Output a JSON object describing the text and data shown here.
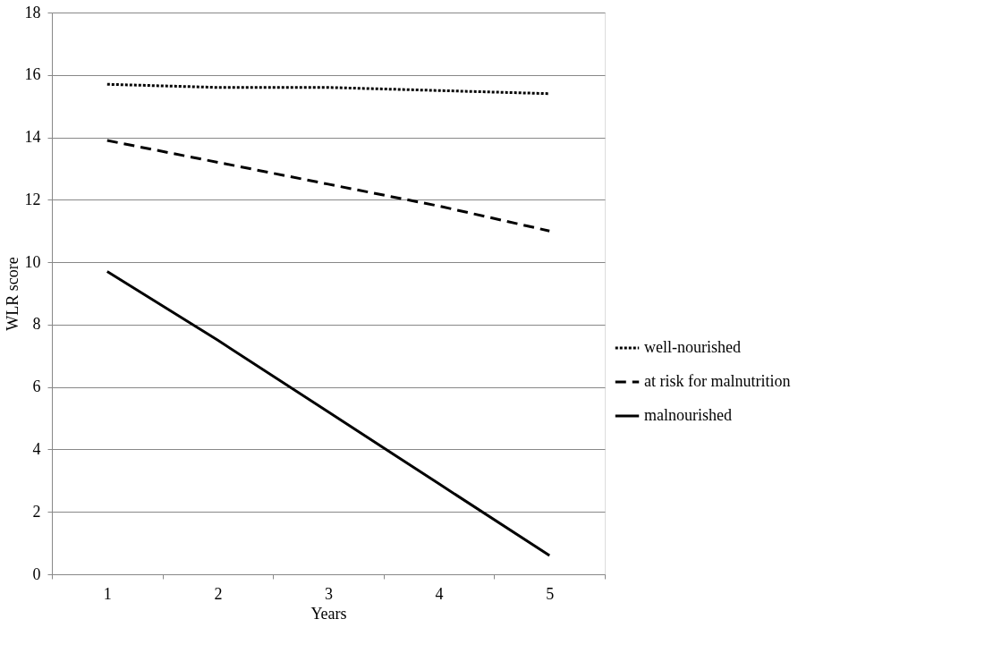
{
  "chart_data": {
    "type": "line",
    "xlabel": "Years",
    "ylabel": "WLR score",
    "categories": [
      "1",
      "2",
      "3",
      "4",
      "5"
    ],
    "series": [
      {
        "name": "well-nourished",
        "color": "#000000",
        "line_style": "dotted",
        "values": [
          15.7,
          15.6,
          15.6,
          15.5,
          15.4
        ]
      },
      {
        "name": "at risk for malnutrition",
        "color": "#000000",
        "line_style": "dashed",
        "values": [
          13.9,
          13.2,
          12.5,
          11.8,
          11.0
        ]
      },
      {
        "name": "malnourished",
        "color": "#000000",
        "line_style": "solid",
        "values": [
          9.7,
          7.5,
          5.2,
          2.9,
          0.6
        ]
      }
    ],
    "ylim": [
      0,
      18
    ],
    "yticks": [
      0,
      2,
      4,
      6,
      8,
      10,
      12,
      14,
      16,
      18
    ],
    "grid": "y",
    "legend": "right",
    "marker": "none"
  }
}
